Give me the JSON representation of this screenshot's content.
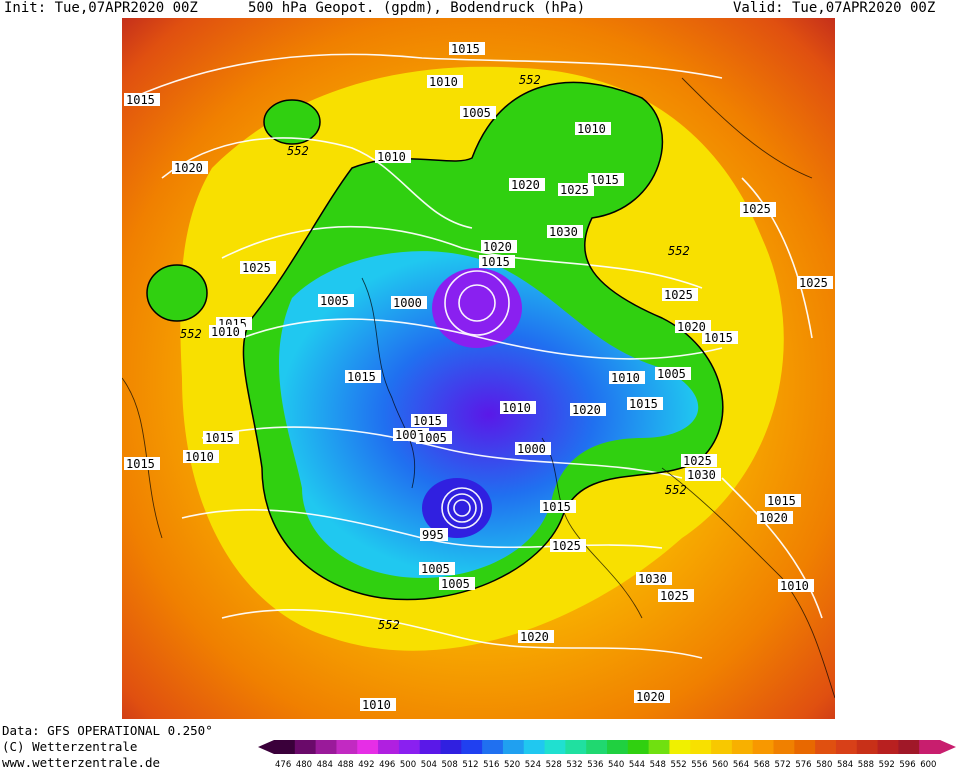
{
  "header": {
    "init": "Init: Tue,07APR2020 00Z",
    "title": "500 hPa Geopot. (gpdm), Bodendruck (hPa)",
    "valid": "Valid: Tue,07APR2020 00Z"
  },
  "footer": {
    "data_source": "Data: GFS OPERATIONAL 0.250°",
    "copyright": "(C) Wetterzentrale",
    "website": "www.wetterzentrale.de"
  },
  "legend": {
    "ticks": [
      "476",
      "480",
      "484",
      "488",
      "492",
      "496",
      "500",
      "504",
      "508",
      "512",
      "516",
      "520",
      "524",
      "528",
      "532",
      "536",
      "540",
      "544",
      "548",
      "552",
      "556",
      "560",
      "564",
      "568",
      "572",
      "576",
      "580",
      "584",
      "588",
      "592",
      "596",
      "600"
    ],
    "colors": [
      "#3a003a",
      "#6a0a6a",
      "#9a1a9a",
      "#c22ac2",
      "#e62ee6",
      "#b020e0",
      "#8a20f0",
      "#5a18e8",
      "#3020e0",
      "#2040f0",
      "#2070f0",
      "#20a0f0",
      "#20c8f0",
      "#20e0d0",
      "#20e0a0",
      "#20d870",
      "#20d040",
      "#30d010",
      "#70e010",
      "#f0f000",
      "#f8e000",
      "#f8c800",
      "#f8b000",
      "#f89800",
      "#f08000",
      "#e86800",
      "#e05010",
      "#d84018",
      "#c83018",
      "#b82020",
      "#a01828",
      "#c81e6e"
    ]
  },
  "map": {
    "contour_threshold_label": "552",
    "pressure_labels": [
      "1015",
      "1010",
      "552",
      "1005",
      "1010",
      "1015",
      "552",
      "1010",
      "1020",
      "1025",
      "1015",
      "1030",
      "1020",
      "552",
      "1020",
      "1015",
      "1025",
      "1025",
      "1005",
      "1000",
      "1025",
      "1015",
      "552",
      "1020",
      "1010",
      "1015",
      "1010",
      "1005",
      "1015",
      "1010",
      "1020",
      "1005",
      "1015",
      "1005",
      "1010",
      "1015",
      "1000",
      "1015",
      "1025",
      "1030",
      "552",
      "995",
      "1015",
      "1025",
      "1005",
      "1005",
      "1030",
      "1025",
      "1010",
      "1015",
      "1020",
      "552",
      "1010",
      "1020",
      "1015",
      "1020",
      "1025",
      "1025"
    ]
  }
}
